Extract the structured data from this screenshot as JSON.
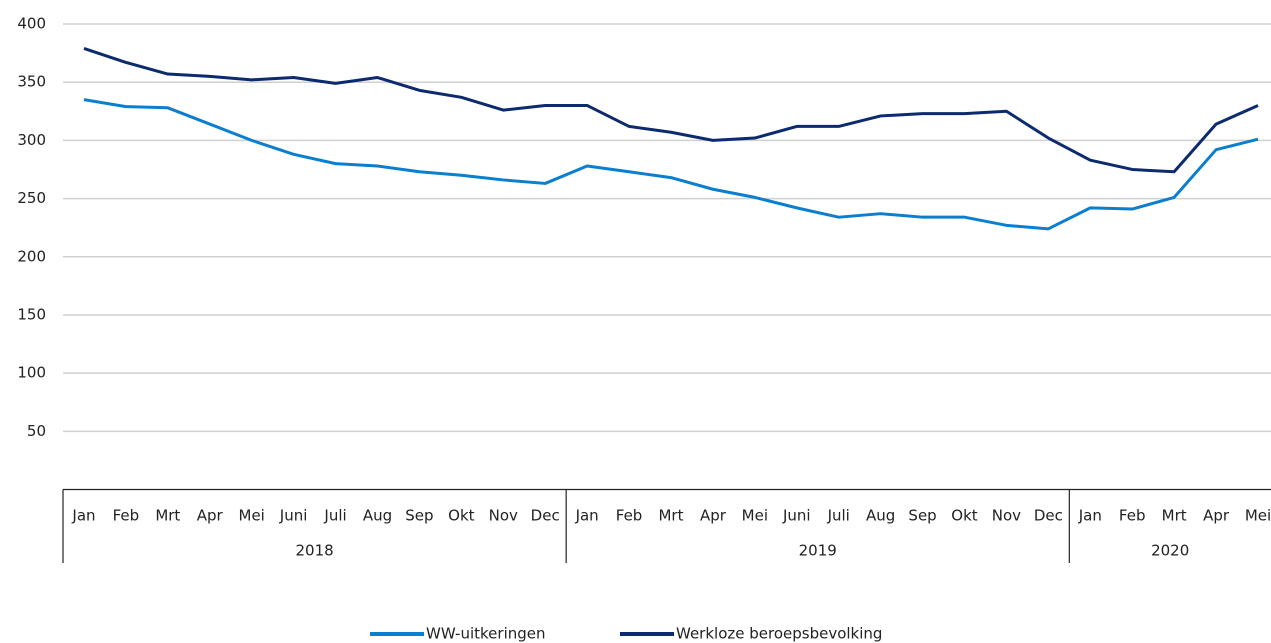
{
  "chart_data": {
    "type": "line",
    "category_groups": [
      {
        "name": "2018",
        "categories": [
          "Jan",
          "Feb",
          "Mrt",
          "Apr",
          "Mei",
          "Juni",
          "Juli",
          "Aug",
          "Sep",
          "Okt",
          "Nov",
          "Dec"
        ]
      },
      {
        "name": "2019",
        "categories": [
          "Jan",
          "Feb",
          "Mrt",
          "Apr",
          "Mei",
          "Juni",
          "Juli",
          "Aug",
          "Sep",
          "Okt",
          "Nov",
          "Dec"
        ]
      },
      {
        "name": "2020",
        "categories": [
          "Jan",
          "Feb",
          "Mrt",
          "Apr",
          "Mei"
        ]
      }
    ],
    "series": [
      {
        "name": "WW-uitkeringen",
        "color": "#0a7fd0",
        "values": [
          335,
          329,
          328,
          314,
          300,
          288,
          280,
          278,
          273,
          270,
          266,
          263,
          278,
          273,
          268,
          258,
          251,
          242,
          234,
          237,
          234,
          234,
          227,
          224,
          242,
          241,
          251,
          292,
          301
        ]
      },
      {
        "name": "Werkloze beroepsbevolking",
        "color": "#0c2b6e",
        "values": [
          379,
          367,
          357,
          355,
          352,
          354,
          349,
          354,
          343,
          337,
          326,
          330,
          330,
          312,
          307,
          300,
          302,
          312,
          312,
          321,
          323,
          323,
          325,
          302,
          283,
          275,
          273,
          314,
          330
        ]
      }
    ],
    "ylim": [
      0,
      400
    ],
    "yticks": [
      50,
      100,
      150,
      200,
      250,
      300,
      350,
      400
    ],
    "grid": true,
    "legend": "bottom"
  }
}
